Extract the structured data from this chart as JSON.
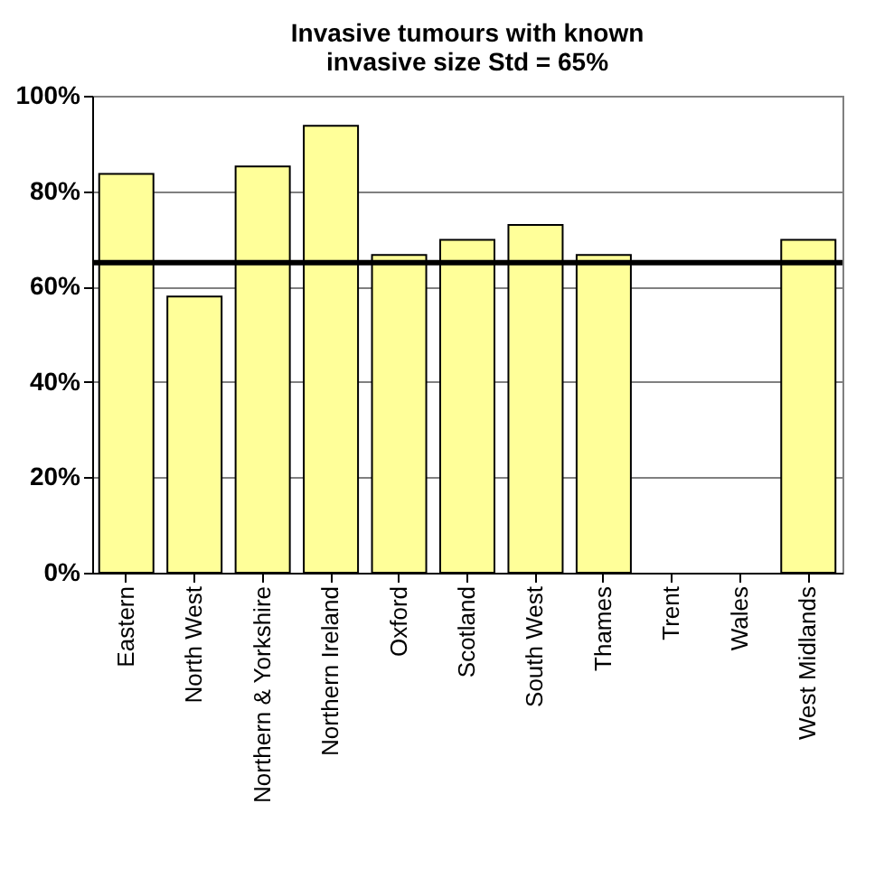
{
  "chart_data": {
    "type": "bar",
    "title": [
      "Invasive tumours with known",
      "invasive size Std = 65%"
    ],
    "categories": [
      "Eastern",
      "North West",
      "Northern & Yorkshire",
      "Northern Ireland",
      "Oxford",
      "Scotland",
      "South West",
      "Thames",
      "Trent",
      "Wales",
      "West Midlands"
    ],
    "values": [
      83.6,
      57.9,
      85.2,
      93.7,
      66.6,
      69.8,
      72.9,
      66.6,
      null,
      null,
      69.8
    ],
    "color": "#ffff99",
    "ylim": [
      0,
      100
    ],
    "yticks": [
      {
        "value": 0,
        "label": "0%"
      },
      {
        "value": 20,
        "label": "20%"
      },
      {
        "value": 40,
        "label": "40%"
      },
      {
        "value": 60,
        "label": "60%"
      },
      {
        "value": 80,
        "label": "80%"
      },
      {
        "value": 100,
        "label": "100%"
      }
    ],
    "ref_lines": [
      {
        "axis": "y",
        "value": 65,
        "color": "#000000"
      }
    ],
    "grid": "y"
  }
}
